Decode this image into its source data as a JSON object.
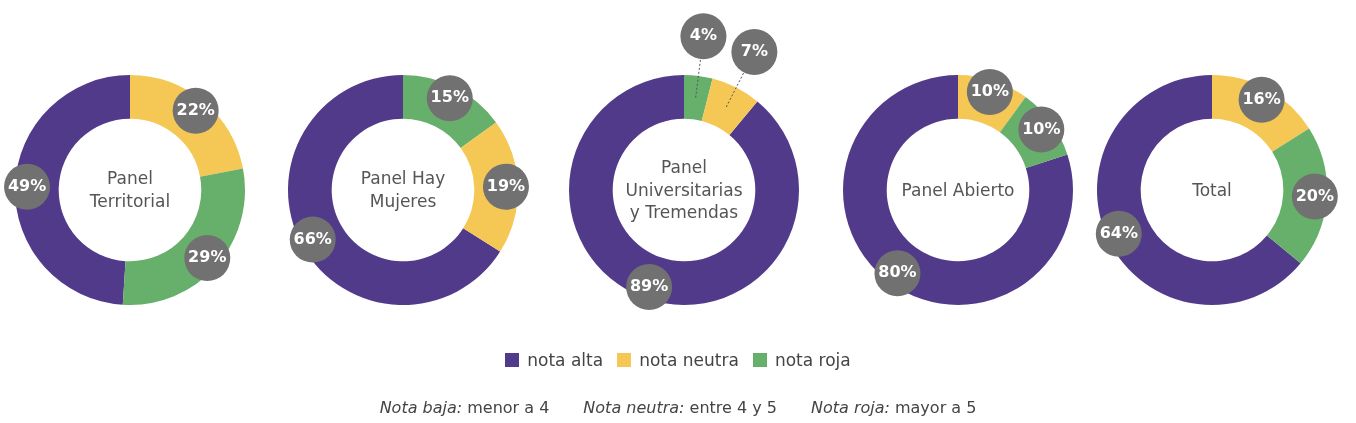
{
  "chart_data": [
    {
      "type": "donut",
      "title": "Panel Territorial",
      "categories": [
        "nota alta",
        "nota neutra",
        "nota roja"
      ],
      "values": [
        49,
        22,
        29
      ],
      "colors": [
        "#523a8a",
        "#f5c755",
        "#66b06b"
      ],
      "value_labels": [
        "49%",
        "22%",
        "29%"
      ],
      "legend": "bottom",
      "annotations": [
        "Nota baja: menor a 4",
        "Nota neutra: entre 4 y 5",
        "Nota roja: mayor a 5"
      ]
    },
    {
      "type": "donut",
      "title": "Panel Hay Mujeres",
      "categories": [
        null,
        null,
        null
      ],
      "values": [
        66,
        15,
        19
      ],
      "colors": [
        "#523a8a",
        "#66b06b",
        "#f5c755"
      ],
      "value_labels": [
        "66%",
        "15%",
        "19%"
      ]
    },
    {
      "type": "donut",
      "title": "Panel Universitarias y Tremendas",
      "categories": [
        null,
        null,
        null
      ],
      "values": [
        89,
        4,
        7
      ],
      "colors": [
        "#523a8a",
        "#66b06b",
        "#f5c755"
      ],
      "value_labels": [
        "89%",
        "4%",
        "7%"
      ]
    },
    {
      "type": "donut",
      "title": "Panel Abierto",
      "categories": [
        null,
        null,
        null
      ],
      "values": [
        80,
        10,
        10
      ],
      "colors": [
        "#523a8a",
        "#f5c755",
        "#66b06b"
      ],
      "value_labels": [
        "80%",
        "10%",
        "10%"
      ]
    },
    {
      "type": "donut",
      "title": "Total",
      "categories": [
        null,
        null,
        null
      ],
      "values": [
        64,
        16,
        20
      ],
      "colors": [
        "#523a8a",
        "#f5c755",
        "#66b06b"
      ],
      "value_labels": [
        "64%",
        "16%",
        "20%"
      ]
    }
  ]
}
